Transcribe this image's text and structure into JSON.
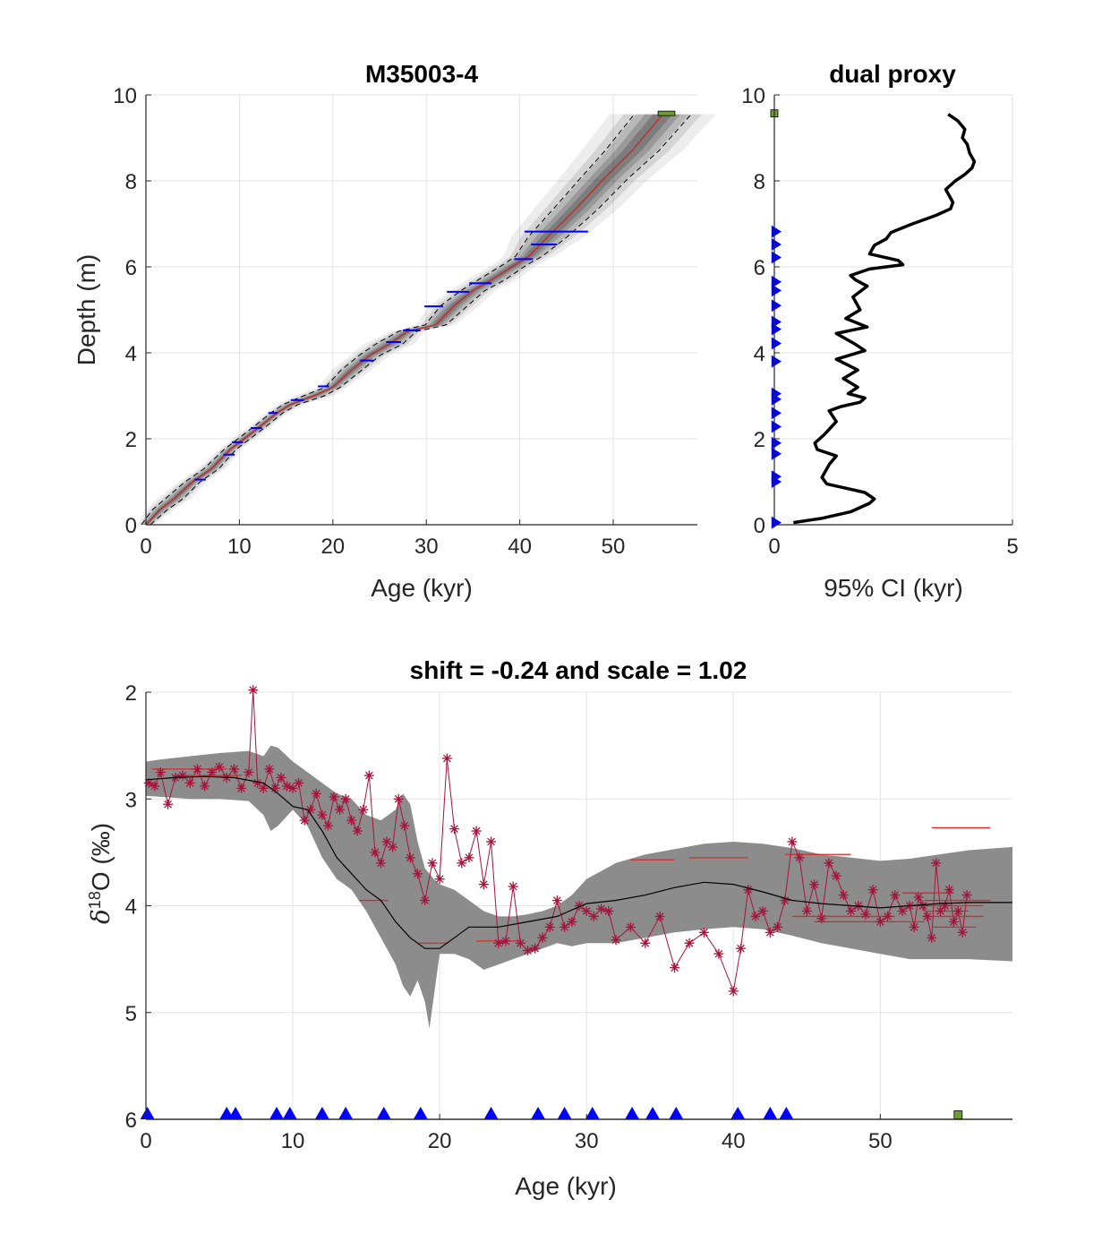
{
  "colors": {
    "depth_model_line": "#cc1f1f",
    "ci_band": "#8c8c8c",
    "ci_dashed": "#000000",
    "date_marker": "#0000ff",
    "top_marker": "#6b9e2f",
    "proxy_data": "#a8123c",
    "mean_curve": "#000000",
    "grid": "#e3e3e3"
  },
  "chart_data": [
    {
      "type": "line",
      "title": "M35003-4",
      "xlabel": "Age (kyr)",
      "ylabel": "Depth (m)",
      "xlim": [
        0,
        59
      ],
      "ylim": [
        0,
        10
      ],
      "xticks": [
        0,
        10,
        20,
        30,
        40,
        50
      ],
      "yticks": [
        0,
        2,
        4,
        6,
        8,
        10
      ],
      "grid": true,
      "series": [
        {
          "x": [
            0,
            1.5,
            3,
            5,
            7,
            9,
            10.5,
            12,
            14,
            15.5,
            18,
            20,
            22,
            24,
            26,
            28,
            31,
            33,
            35,
            37,
            39.5,
            41,
            43,
            46,
            49,
            52,
            55.3
          ],
          "y": [
            0,
            0.35,
            0.6,
            1.0,
            1.3,
            1.75,
            2.0,
            2.25,
            2.6,
            2.8,
            3.0,
            3.2,
            3.6,
            3.95,
            4.2,
            4.5,
            4.65,
            5.1,
            5.45,
            5.7,
            6.05,
            6.25,
            6.7,
            7.35,
            8.05,
            8.7,
            9.55
          ]
        }
      ],
      "ci_halfwidth_kyr": [
        0.3,
        0.5,
        0.6,
        0.5,
        0.5,
        0.4,
        0.4,
        0.4,
        0.4,
        0.5,
        0.7,
        0.5,
        0.7,
        0.7,
        0.9,
        0.6,
        0.7,
        0.9,
        0.8,
        0.9,
        0.8,
        0.9,
        1.3,
        1.5,
        1.6,
        1.8,
        1.9
      ],
      "dates": {
        "depth": [
          1.05,
          1.63,
          1.92,
          2.25,
          2.6,
          2.9,
          3.22,
          3.82,
          4.25,
          4.52,
          5.08,
          5.42,
          5.62,
          6.18,
          6.52,
          6.82
        ],
        "age": [
          5.8,
          8.9,
          9.8,
          11.8,
          13.6,
          16.2,
          19.0,
          23.6,
          26.5,
          28.4,
          30.8,
          33.4,
          35.8,
          40.4,
          42.6,
          43.9
        ],
        "err": [
          0.6,
          0.6,
          0.6,
          0.6,
          0.5,
          0.7,
          0.6,
          0.7,
          0.8,
          0.9,
          1.0,
          1.2,
          1.2,
          1.0,
          1.4,
          3.4
        ]
      },
      "top_marker": {
        "age_from": 54.8,
        "age_to": 56.6,
        "depth": 9.57
      }
    },
    {
      "type": "line",
      "title": "dual proxy",
      "xlabel": "95% CI (kyr)",
      "ylabel": "",
      "xlim": [
        0,
        5
      ],
      "ylim": [
        0,
        10
      ],
      "xticks": [
        0,
        5
      ],
      "yticks": [
        0,
        2,
        4,
        6,
        8,
        10
      ],
      "grid": true,
      "series": [
        {
          "x": [
            0.4,
            1.0,
            1.6,
            2.0,
            2.1,
            1.9,
            1.5,
            1.1,
            1.0,
            1.15,
            1.3,
            0.9,
            0.85,
            1.05,
            1.3,
            1.15,
            1.4,
            1.8,
            1.9,
            1.55,
            1.75,
            1.45,
            1.75,
            1.3,
            1.9,
            1.7,
            1.3,
            1.95,
            1.5,
            1.8,
            1.65,
            1.95,
            1.7,
            1.6,
            2.0,
            2.7,
            2.6,
            2.0,
            2.1,
            2.35,
            2.45,
            2.9,
            3.4,
            3.7,
            3.75,
            3.6,
            3.8,
            4.0,
            4.15,
            4.2,
            4.1,
            4.05,
            3.95,
            4.0,
            3.85,
            3.65
          ],
          "y": [
            0.05,
            0.15,
            0.3,
            0.5,
            0.6,
            0.75,
            0.85,
            0.95,
            1.1,
            1.4,
            1.6,
            1.75,
            1.9,
            2.1,
            2.4,
            2.65,
            2.75,
            2.85,
            2.95,
            3.05,
            3.2,
            3.4,
            3.6,
            3.85,
            4.05,
            4.2,
            4.45,
            4.6,
            4.8,
            5.0,
            5.3,
            5.55,
            5.7,
            5.8,
            5.95,
            6.05,
            6.15,
            6.3,
            6.5,
            6.65,
            6.8,
            7.0,
            7.2,
            7.35,
            7.5,
            7.8,
            8.0,
            8.15,
            8.3,
            8.45,
            8.65,
            8.85,
            9.0,
            9.2,
            9.4,
            9.55
          ]
        }
      ],
      "markers": {
        "depth": [
          0.05,
          1.0,
          1.12,
          1.65,
          1.9,
          2.28,
          2.6,
          2.92,
          3.05,
          3.8,
          4.22,
          4.55,
          4.72,
          5.1,
          5.45,
          5.65,
          6.22,
          6.52,
          6.82
        ],
        "top_depth": 9.57
      }
    },
    {
      "type": "line",
      "title": "shift = -0.24 and scale = 1.02",
      "xlabel": "Age (kyr)",
      "ylabel_parts": {
        "delta": "δ",
        "sup": "18",
        "rest": "O (‰)"
      },
      "xlim": [
        0,
        59
      ],
      "ylim": [
        2,
        6
      ],
      "y_reversed": true,
      "xticks": [
        0,
        10,
        20,
        30,
        40,
        50
      ],
      "yticks": [
        2,
        3,
        4,
        5,
        6
      ],
      "grid": true,
      "band_x": [
        0,
        1,
        3,
        5,
        7,
        8,
        8.5,
        9,
        10,
        11,
        12,
        13,
        14,
        15,
        16,
        17,
        17.5,
        18,
        18.5,
        19,
        19.3,
        19.6,
        20,
        21,
        22,
        23,
        24,
        25,
        26,
        27,
        28,
        29,
        30,
        32,
        34,
        36,
        38,
        40,
        42,
        44,
        46,
        48,
        50,
        52,
        54,
        56,
        59
      ],
      "band_lo": [
        2.65,
        2.63,
        2.6,
        2.57,
        2.55,
        2.6,
        2.5,
        2.52,
        2.65,
        2.75,
        2.85,
        2.95,
        3.0,
        3.15,
        3.2,
        3.1,
        2.95,
        3.05,
        3.4,
        3.65,
        3.7,
        3.75,
        3.8,
        3.85,
        3.95,
        4.05,
        4.1,
        4.1,
        4.08,
        4.05,
        4.0,
        3.9,
        3.75,
        3.6,
        3.52,
        3.47,
        3.42,
        3.4,
        3.42,
        3.46,
        3.52,
        3.55,
        3.58,
        3.56,
        3.52,
        3.48,
        3.45
      ],
      "band_hi": [
        2.97,
        2.98,
        3.0,
        3.0,
        3.02,
        3.15,
        3.3,
        3.25,
        3.1,
        3.25,
        3.55,
        3.75,
        3.85,
        4.05,
        4.3,
        4.55,
        4.75,
        4.85,
        4.7,
        4.9,
        5.15,
        4.85,
        4.45,
        4.45,
        4.5,
        4.6,
        4.55,
        4.5,
        4.45,
        4.4,
        4.35,
        4.38,
        4.35,
        4.35,
        4.3,
        4.25,
        4.22,
        4.2,
        4.22,
        4.28,
        4.35,
        4.4,
        4.45,
        4.5,
        4.5,
        4.5,
        4.52
      ],
      "mean_x": [
        0,
        2,
        4,
        6,
        8,
        9,
        10,
        11,
        12,
        13,
        14,
        15,
        16,
        17,
        18,
        19,
        20,
        21,
        22,
        24,
        26,
        28,
        30,
        32,
        34,
        36,
        38,
        40,
        42,
        44,
        46,
        48,
        50,
        52,
        54,
        56,
        59
      ],
      "mean_y": [
        2.82,
        2.8,
        2.79,
        2.8,
        2.85,
        2.95,
        3.07,
        3.1,
        3.3,
        3.55,
        3.7,
        3.85,
        3.95,
        4.15,
        4.3,
        4.4,
        4.4,
        4.3,
        4.2,
        4.2,
        4.15,
        4.1,
        3.98,
        3.95,
        3.9,
        3.83,
        3.78,
        3.8,
        3.87,
        3.95,
        3.98,
        4.0,
        4.02,
        4.0,
        3.98,
        3.97,
        3.97
      ],
      "proxy_x": [
        0.2,
        0.6,
        1.0,
        1.5,
        2.0,
        2.5,
        3.0,
        3.5,
        4.0,
        4.5,
        5.0,
        5.5,
        6.0,
        6.5,
        7.0,
        7.3,
        7.6,
        8.0,
        8.4,
        8.8,
        9.2,
        9.6,
        10.0,
        10.4,
        10.8,
        11.2,
        11.6,
        12.0,
        12.4,
        12.8,
        13.2,
        13.6,
        14.0,
        14.4,
        14.8,
        15.2,
        15.6,
        16.0,
        16.4,
        16.8,
        17.2,
        17.6,
        18.0,
        18.5,
        19.0,
        19.5,
        20.0,
        20.5,
        21.0,
        21.5,
        22.0,
        22.5,
        23.0,
        23.5,
        24.0,
        24.5,
        25.0,
        25.5,
        26.0,
        26.5,
        27.0,
        27.5,
        28.0,
        28.5,
        29.0,
        29.5,
        30.0,
        30.5,
        31.0,
        31.5,
        32.0,
        33.0,
        34.0,
        35.0,
        36.0,
        37.0,
        38.0,
        39.0,
        40.0,
        40.5,
        41.0,
        41.5,
        42.0,
        42.5,
        43.0,
        43.5,
        44.0,
        44.5,
        45.0,
        45.5,
        46.0,
        46.5,
        47.0,
        47.5,
        48.0,
        48.5,
        49.0,
        49.5,
        50.0,
        50.5,
        51.0,
        51.5,
        52.0,
        52.3,
        52.6,
        52.9,
        53.2,
        53.5,
        53.8,
        54.1,
        54.4,
        54.7,
        55.0,
        55.3,
        55.6,
        55.9
      ],
      "proxy_y": [
        2.85,
        2.88,
        2.75,
        3.05,
        2.8,
        2.78,
        2.85,
        2.72,
        2.88,
        2.75,
        2.7,
        2.8,
        2.72,
        2.9,
        2.75,
        1.98,
        2.85,
        2.9,
        2.72,
        2.9,
        2.8,
        2.88,
        2.9,
        2.85,
        3.2,
        3.1,
        2.95,
        3.15,
        3.25,
        2.98,
        3.1,
        3.0,
        3.2,
        3.3,
        3.1,
        2.78,
        3.5,
        3.6,
        3.4,
        3.45,
        3.0,
        3.25,
        3.55,
        3.7,
        3.95,
        3.6,
        3.75,
        2.62,
        3.28,
        3.6,
        3.55,
        3.3,
        3.8,
        3.4,
        4.35,
        4.33,
        3.82,
        4.35,
        4.42,
        4.4,
        4.3,
        4.2,
        3.95,
        4.2,
        4.15,
        4.0,
        4.05,
        4.1,
        4.03,
        4.05,
        4.32,
        4.2,
        4.35,
        4.1,
        4.58,
        4.35,
        4.25,
        4.45,
        4.8,
        4.4,
        3.85,
        4.1,
        4.05,
        4.25,
        4.2,
        3.95,
        3.4,
        3.55,
        4.05,
        3.8,
        4.12,
        3.6,
        3.72,
        3.9,
        4.05,
        4.0,
        4.08,
        3.85,
        4.15,
        4.1,
        3.9,
        4.05,
        4.0,
        4.2,
        3.92,
        4.0,
        4.1,
        4.3,
        3.6,
        4.05,
        4.0,
        3.85,
        4.15,
        4.05,
        4.25,
        3.9,
        4.0,
        4.12
      ],
      "hbars": [
        {
          "x1": 0.4,
          "x2": 5.5,
          "y": 2.72
        },
        {
          "x1": 2.0,
          "x2": 6.5,
          "y": 2.78
        },
        {
          "x1": 14.5,
          "x2": 16.5,
          "y": 3.95
        },
        {
          "x1": 18.5,
          "x2": 20.5,
          "y": 4.35
        },
        {
          "x1": 22.5,
          "x2": 25.5,
          "y": 4.33
        },
        {
          "x1": 33.0,
          "x2": 36.0,
          "y": 3.57
        },
        {
          "x1": 37.0,
          "x2": 41.0,
          "y": 3.55
        },
        {
          "x1": 43.5,
          "x2": 48.0,
          "y": 3.52
        },
        {
          "x1": 44.0,
          "x2": 51.0,
          "y": 4.1
        },
        {
          "x1": 45.5,
          "x2": 53.0,
          "y": 4.15
        },
        {
          "x1": 51.5,
          "x2": 55.0,
          "y": 3.88
        },
        {
          "x1": 52.0,
          "x2": 57.0,
          "y": 4.0
        },
        {
          "x1": 53.0,
          "x2": 56.0,
          "y": 4.05
        },
        {
          "x1": 53.5,
          "x2": 56.5,
          "y": 4.2
        },
        {
          "x1": 53.0,
          "x2": 57.5,
          "y": 3.95
        },
        {
          "x1": 53.0,
          "x2": 57.0,
          "y": 4.1
        },
        {
          "x1": 53.5,
          "x2": 57.5,
          "y": 3.27
        }
      ],
      "date_ages": [
        0.1,
        5.5,
        6.1,
        8.9,
        9.8,
        12.0,
        13.6,
        16.2,
        18.7,
        23.5,
        26.7,
        28.5,
        30.4,
        33.1,
        34.5,
        36.1,
        40.3,
        42.5,
        43.6
      ],
      "top_age": 55.3
    }
  ]
}
